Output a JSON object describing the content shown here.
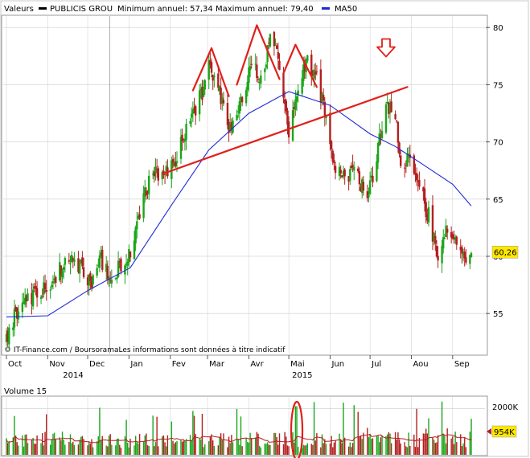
{
  "legend": {
    "label": "Valeurs",
    "series_name": "PUBLICIS GROU",
    "range_text": "Minimum annuel: 57,34 Maximum annuel: 79,40",
    "ma_name": "MA50"
  },
  "footer": {
    "source": "© IT-Finance.com / BoursoramaLes informations sont données à titre indicatif"
  },
  "last_price_label": "60,26",
  "volume": {
    "title": "Volume 15",
    "tick_label": "2000K",
    "last_label": "954K"
  },
  "colors": {
    "up": "#1aa51a",
    "down": "#b41e1e",
    "ma50": "#1f2ad6",
    "annotation": "#e0201b",
    "grid": "#cccccc",
    "price_badge": "#ffe800",
    "volume_ma": "#b41e1e"
  },
  "chart_data": [
    {
      "type": "candlestick",
      "title": "PUBLICIS GROU",
      "x_range": [
        "2014-10-01",
        "2015-09-15"
      ],
      "y_range": [
        51.5,
        81.0
      ],
      "y_ticks": [
        55,
        60,
        65,
        70,
        75,
        80
      ],
      "x_tick_labels": [
        "Oct",
        "Nov",
        "Dec",
        "Jan",
        "Fev",
        "Mar",
        "Avr",
        "Mai",
        "Jun",
        "Jul",
        "Aou",
        "Sep"
      ],
      "year_labels": [
        "2014",
        "2015"
      ],
      "grid": true,
      "last_price": 60.26,
      "series": [
        {
          "name": "PUBLICIS GROU",
          "price_path": [
            [
              "2014-10-01",
              52.5
            ],
            [
              "2014-10-06",
              54.5
            ],
            [
              "2014-10-15",
              55.8
            ],
            [
              "2014-10-28",
              57.0
            ],
            [
              "2014-11-10",
              58.8
            ],
            [
              "2014-11-19",
              60.3
            ],
            [
              "2014-11-26",
              59.0
            ],
            [
              "2014-12-03",
              57.5
            ],
            [
              "2014-12-10",
              60.2
            ],
            [
              "2014-12-17",
              58.0
            ],
            [
              "2015-01-02",
              60.5
            ],
            [
              "2015-01-10",
              64.5
            ],
            [
              "2015-01-19",
              67.5
            ],
            [
              "2015-01-26",
              66.8
            ],
            [
              "2015-02-05",
              68.5
            ],
            [
              "2015-02-13",
              71.0
            ],
            [
              "2015-02-24",
              74.0
            ],
            [
              "2015-03-03",
              76.8
            ],
            [
              "2015-03-10",
              74.5
            ],
            [
              "2015-03-17",
              70.5
            ],
            [
              "2015-03-24",
              73.0
            ],
            [
              "2015-04-03",
              76.5
            ],
            [
              "2015-04-10",
              75.5
            ],
            [
              "2015-04-17",
              79.0
            ],
            [
              "2015-04-24",
              77.0
            ],
            [
              "2015-05-01",
              71.0
            ],
            [
              "2015-05-08",
              75.0
            ],
            [
              "2015-05-15",
              77.0
            ],
            [
              "2015-05-22",
              75.5
            ],
            [
              "2015-05-27",
              73.0
            ],
            [
              "2015-06-03",
              68.0
            ],
            [
              "2015-06-12",
              67.5
            ],
            [
              "2015-06-22",
              66.8
            ],
            [
              "2015-06-29",
              65.5
            ],
            [
              "2015-07-06",
              68.5
            ],
            [
              "2015-07-13",
              73.5
            ],
            [
              "2015-07-20",
              72.5
            ],
            [
              "2015-07-24",
              68.0
            ],
            [
              "2015-07-31",
              69.0
            ],
            [
              "2015-08-07",
              66.0
            ],
            [
              "2015-08-14",
              63.5
            ],
            [
              "2015-08-21",
              60.0
            ],
            [
              "2015-08-28",
              62.5
            ],
            [
              "2015-09-04",
              61.5
            ],
            [
              "2015-09-10",
              59.5
            ],
            [
              "2015-09-14",
              60.26
            ]
          ]
        },
        {
          "name": "MA50",
          "points": [
            [
              "2014-10-01",
              54.7
            ],
            [
              "2014-11-01",
              54.8
            ],
            [
              "2014-12-01",
              57.0
            ],
            [
              "2015-01-02",
              59.0
            ],
            [
              "2015-02-02",
              64.5
            ],
            [
              "2015-03-02",
              69.3
            ],
            [
              "2015-04-01",
              72.5
            ],
            [
              "2015-05-01",
              74.4
            ],
            [
              "2015-06-01",
              73.2
            ],
            [
              "2015-07-01",
              70.7
            ],
            [
              "2015-07-20",
              69.6
            ],
            [
              "2015-08-10",
              68.0
            ],
            [
              "2015-09-01",
              66.3
            ],
            [
              "2015-09-15",
              64.4
            ]
          ]
        }
      ]
    },
    {
      "type": "bar",
      "title": "Volume 15",
      "y_range": [
        0,
        2500
      ],
      "y_ticks": [
        2000
      ],
      "y_unit": "K",
      "last_value": 954
    }
  ]
}
